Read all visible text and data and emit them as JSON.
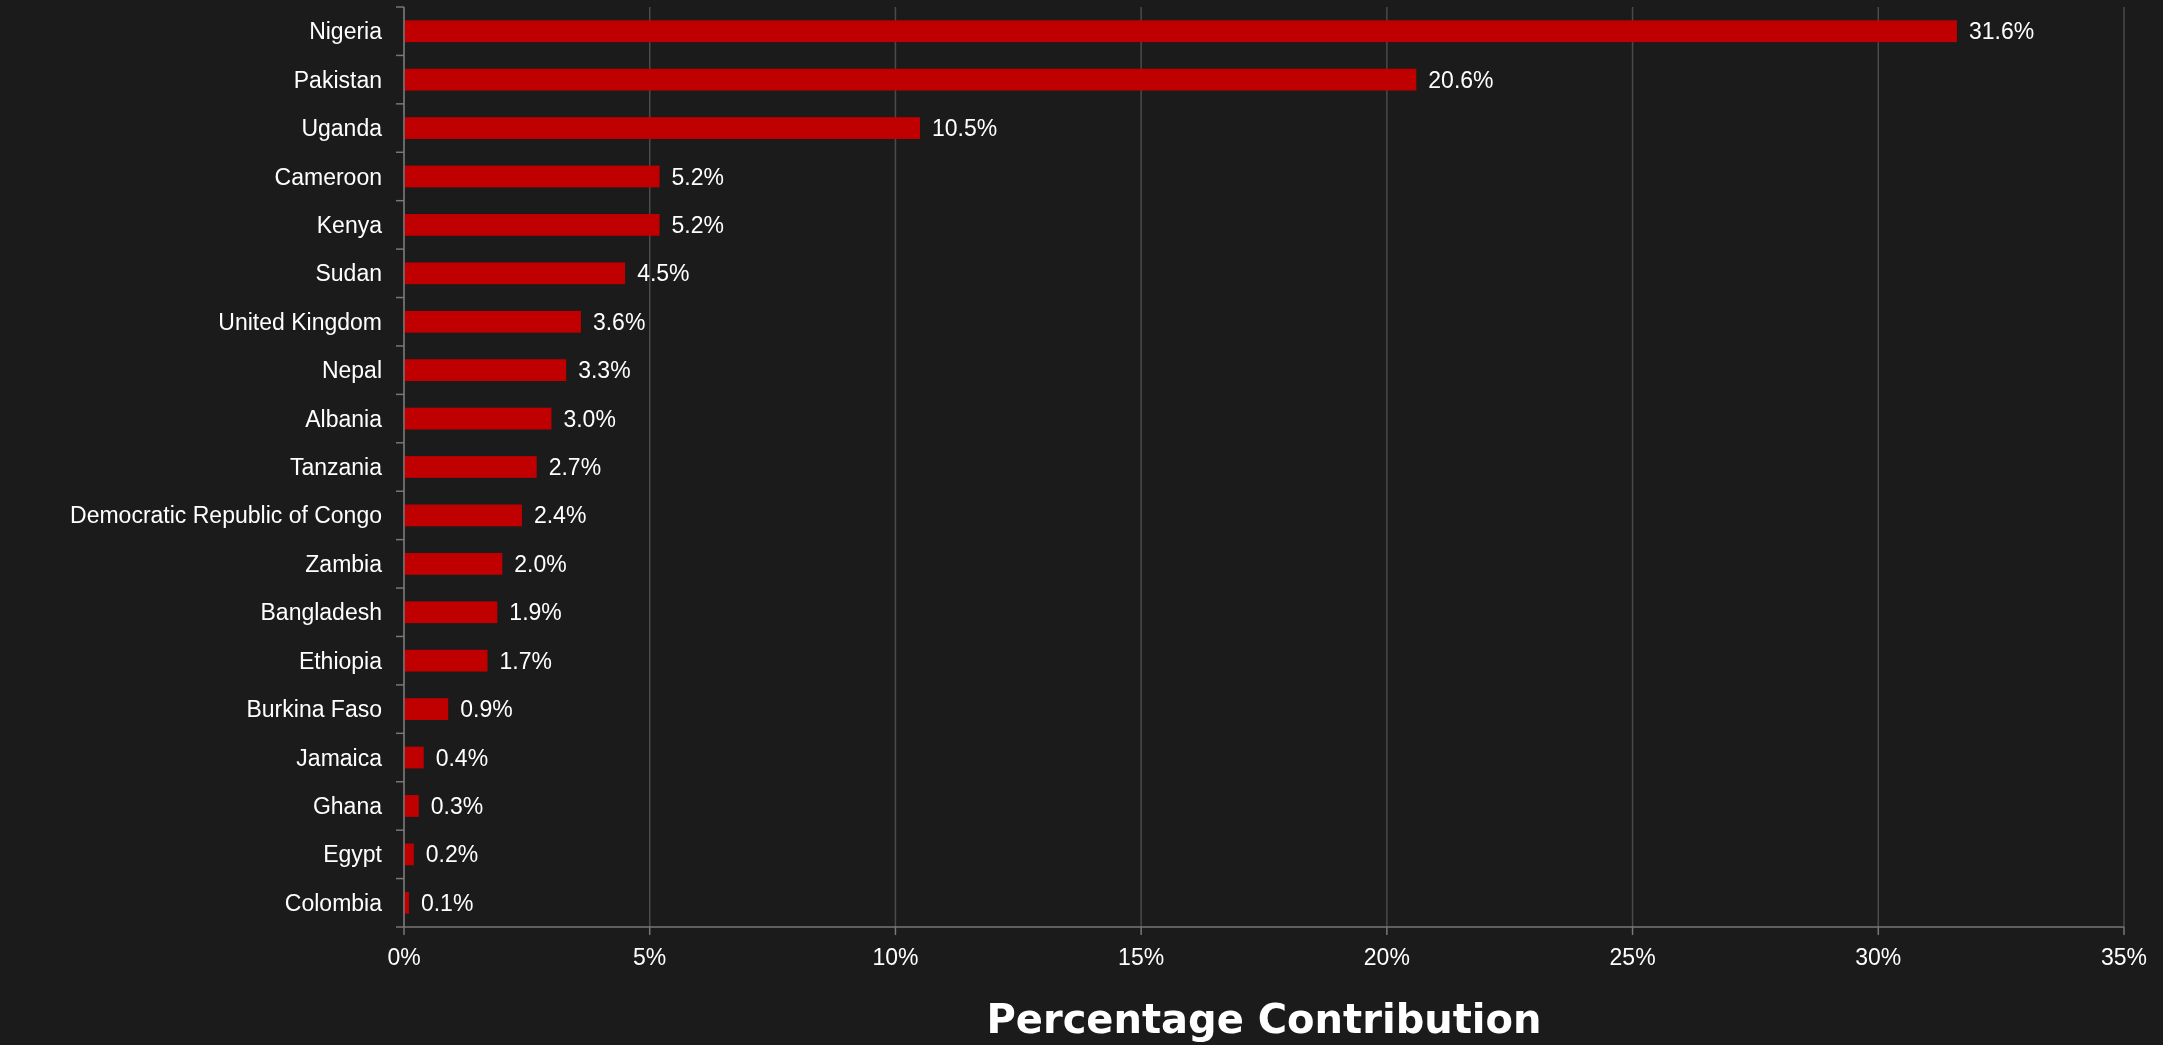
{
  "chart_data": {
    "type": "bar",
    "orientation": "horizontal",
    "xlabel": "Percentage Contribution",
    "categories": [
      "Nigeria",
      "Pakistan",
      "Uganda",
      "Cameroon",
      "Kenya",
      "Sudan",
      "United Kingdom",
      "Nepal",
      "Albania",
      "Tanzania",
      "Democratic Republic of Congo",
      "Zambia",
      "Bangladesh",
      "Ethiopia",
      "Burkina Faso",
      "Jamaica",
      "Ghana",
      "Egypt",
      "Colombia"
    ],
    "values": [
      31.6,
      20.6,
      10.5,
      5.2,
      5.2,
      4.5,
      3.6,
      3.3,
      3.0,
      2.7,
      2.4,
      2.0,
      1.9,
      1.7,
      0.9,
      0.4,
      0.3,
      0.2,
      0.1
    ],
    "value_labels": [
      "31.6%",
      "20.6%",
      "10.5%",
      "5.2%",
      "5.2%",
      "4.5%",
      "3.6%",
      "3.3%",
      "3.0%",
      "2.7%",
      "2.4%",
      "2.0%",
      "1.9%",
      "1.7%",
      "0.9%",
      "0.4%",
      "0.3%",
      "0.2%",
      "0.1%"
    ],
    "color": "#c00000",
    "xlim": [
      0,
      35
    ],
    "xticks": [
      {
        "value": 0,
        "label": "0%"
      },
      {
        "value": 5,
        "label": "5%"
      },
      {
        "value": 10,
        "label": "10%"
      },
      {
        "value": 15,
        "label": "15%"
      },
      {
        "value": 20,
        "label": "20%"
      },
      {
        "value": 25,
        "label": "25%"
      },
      {
        "value": 30,
        "label": "30%"
      },
      {
        "value": 35,
        "label": "35%"
      }
    ],
    "grid": "x"
  }
}
